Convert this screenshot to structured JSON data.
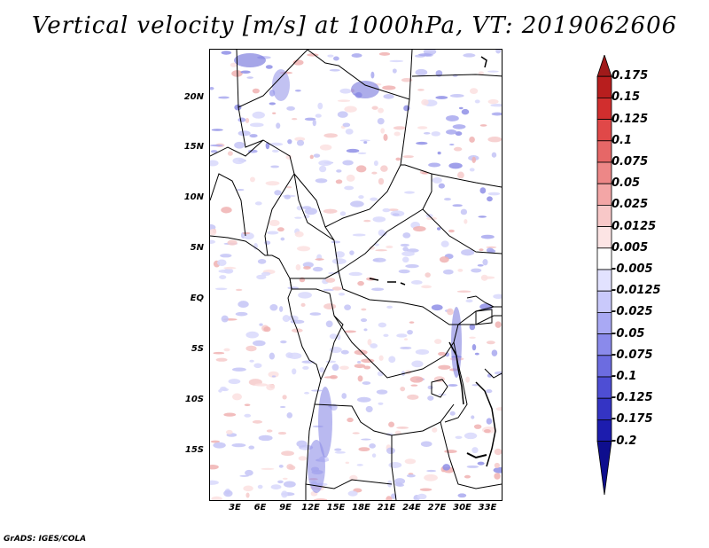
{
  "title": "Vertical velocity [m/s] at 1000hPa, VT: 2019062606",
  "footer": "GrADS: IGES/COLA",
  "map": {
    "lat_labels": [
      "20N",
      "15N",
      "10N",
      "5N",
      "EQ",
      "5S",
      "10S",
      "15S"
    ],
    "lon_labels": [
      "3E",
      "6E",
      "9E",
      "12E",
      "15E",
      "18E",
      "21E",
      "24E",
      "27E",
      "30E",
      "33E"
    ],
    "lat_range": [
      -20,
      25
    ],
    "lon_range": [
      0,
      35
    ]
  },
  "colorbar": {
    "labels": [
      "0.175",
      "0.15",
      "0.125",
      "0.1",
      "0.075",
      "0.05",
      "0.025",
      "0.0125",
      "0.005",
      "-0.005",
      "-0.0125",
      "-0.025",
      "-0.05",
      "-0.075",
      "-0.1",
      "-0.125",
      "-0.175",
      "-0.2"
    ],
    "colors": [
      "#a01a1a",
      "#b81e1e",
      "#d12e2e",
      "#e04848",
      "#e66767",
      "#ed8787",
      "#f3a6a6",
      "#f8c8c8",
      "#fce4e4",
      "#ffffff",
      "#e2e2ff",
      "#c9c9fb",
      "#a9a9f4",
      "#8a8aeb",
      "#6c6ce0",
      "#4e4ed4",
      "#3434c4",
      "#1c1cae",
      "#0e0e8e"
    ]
  }
}
